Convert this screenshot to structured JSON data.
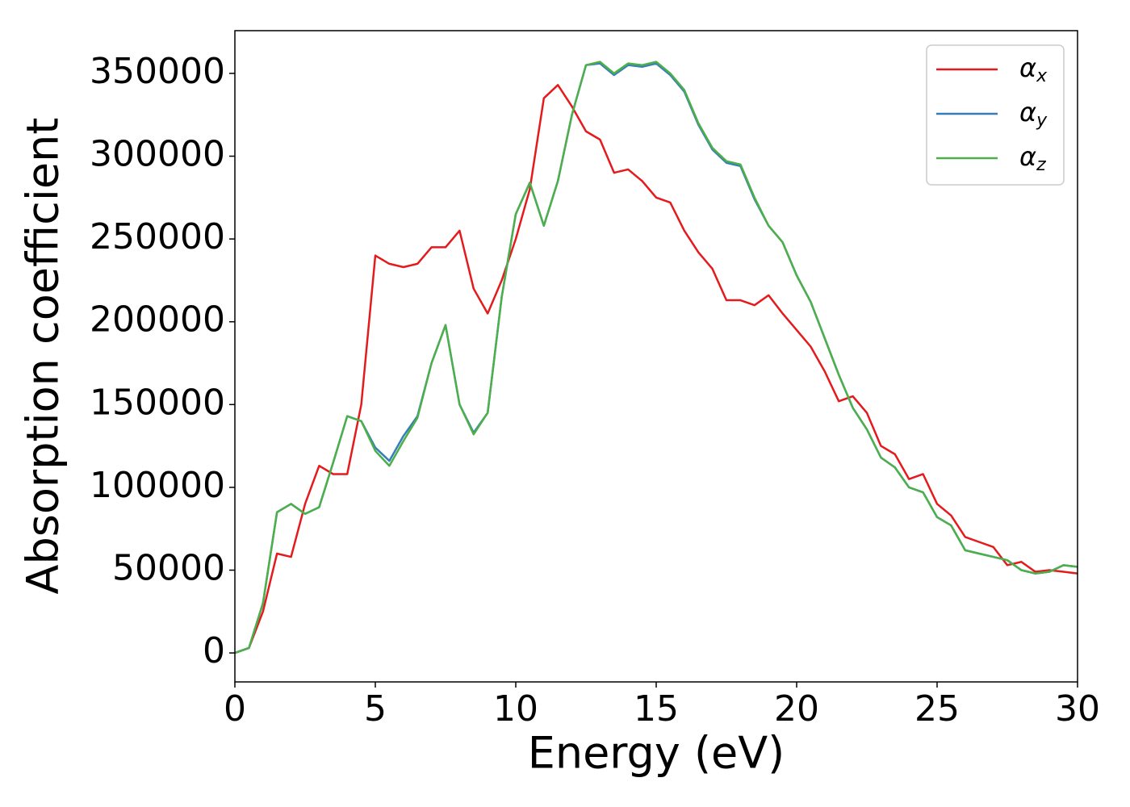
{
  "chart_data": {
    "type": "line",
    "x_label": "Energy (eV)",
    "y_label": "Absorption coefficient",
    "xlim": [
      0,
      30
    ],
    "xticks": [
      0,
      5,
      10,
      15,
      20,
      25,
      30
    ],
    "ylim": [
      -17500,
      375800
    ],
    "yticks": [
      0,
      50000,
      100000,
      150000,
      200000,
      250000,
      300000,
      350000
    ],
    "legend": "upper right",
    "x": [
      0,
      0.5,
      1,
      1.5,
      2,
      2.5,
      3,
      3.5,
      4,
      4.5,
      5,
      5.5,
      6,
      6.5,
      7,
      7.5,
      8,
      8.5,
      9,
      9.5,
      10,
      10.5,
      11,
      11.5,
      12,
      12.5,
      13,
      13.5,
      14,
      14.5,
      15,
      15.5,
      16,
      16.5,
      17,
      17.5,
      18,
      18.5,
      19,
      19.5,
      20,
      20.5,
      21,
      21.5,
      22,
      22.5,
      23,
      23.5,
      24,
      24.5,
      25,
      25.5,
      26,
      26.5,
      27,
      27.5,
      28,
      28.5,
      29,
      29.5,
      30
    ],
    "series": [
      {
        "name": "αx",
        "color": "#e41a1c",
        "values": [
          0,
          3000,
          25000,
          60000,
          58000,
          90000,
          113000,
          108000,
          108000,
          150000,
          240000,
          235000,
          233000,
          235000,
          245000,
          245000,
          255000,
          220000,
          205000,
          225000,
          250000,
          280000,
          335000,
          343000,
          330000,
          315000,
          310000,
          290000,
          292000,
          285000,
          275000,
          272000,
          255000,
          242000,
          232000,
          213000,
          213000,
          210000,
          216000,
          205000,
          195000,
          185000,
          170000,
          152000,
          155000,
          145000,
          125000,
          120000,
          105000,
          108000,
          90000,
          83000,
          70000,
          67000,
          64000,
          53000,
          55000,
          49000,
          50000,
          49000,
          48000
        ]
      },
      {
        "name": "αy",
        "color": "#377eb8",
        "values": [
          0,
          3000,
          30000,
          85000,
          90000,
          84000,
          88000,
          115000,
          143000,
          140000,
          124000,
          116000,
          131000,
          143000,
          175000,
          198000,
          150000,
          133000,
          145000,
          215000,
          265000,
          284000,
          258000,
          285000,
          325000,
          355000,
          356000,
          349000,
          355000,
          354000,
          356000,
          349000,
          339000,
          319000,
          304000,
          296000,
          294000,
          274000,
          258000,
          248000,
          228000,
          212000,
          190000,
          168000,
          148000,
          135000,
          118000,
          112000,
          100000,
          97000,
          82000,
          77000,
          62000,
          60000,
          58000,
          56000,
          50000,
          48000,
          49000,
          53000,
          52000
        ]
      },
      {
        "name": "αz",
        "color": "#4daf4a",
        "values": [
          0,
          3000,
          30000,
          85000,
          90000,
          84000,
          88000,
          115000,
          143000,
          140000,
          122000,
          113000,
          128000,
          142000,
          175000,
          198000,
          150000,
          132000,
          145000,
          215000,
          265000,
          284000,
          258000,
          285000,
          325000,
          355000,
          357000,
          350000,
          356000,
          355000,
          357000,
          350000,
          340000,
          320000,
          305000,
          297000,
          295000,
          275000,
          258000,
          248000,
          228000,
          212000,
          190000,
          168000,
          148000,
          135000,
          118000,
          112000,
          100000,
          97000,
          82000,
          77000,
          62000,
          60000,
          58000,
          56000,
          50000,
          48000,
          49000,
          53000,
          52000
        ]
      }
    ]
  }
}
